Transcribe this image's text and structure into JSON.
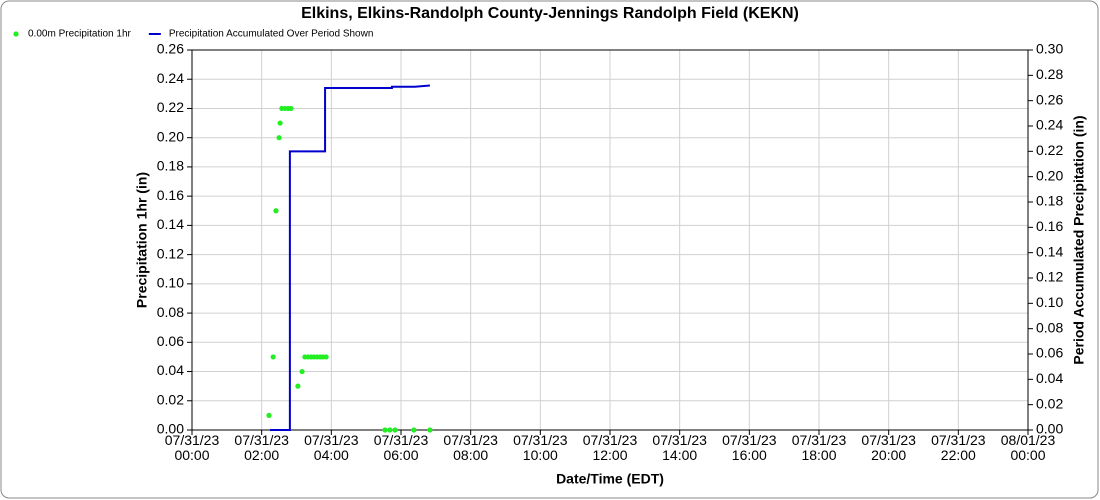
{
  "chart_data": {
    "type": "combo",
    "title": "Elkins, Elkins-Randolph County-Jennings Randolph Field (KEKN)",
    "x_label": "Date/Time (EDT)",
    "y_label": "Precipitation 1hr (in)",
    "y2_label": "Period Accumulated Precipitation (in)",
    "grid": true,
    "legend": "top-left",
    "xlim": [
      0,
      24
    ],
    "xticks": [
      {
        "value": 0,
        "label": "07/31/23\n00:00"
      },
      {
        "value": 2,
        "label": "07/31/23\n02:00"
      },
      {
        "value": 4,
        "label": "07/31/23\n04:00"
      },
      {
        "value": 6,
        "label": "07/31/23\n06:00"
      },
      {
        "value": 8,
        "label": "07/31/23\n08:00"
      },
      {
        "value": 10,
        "label": "07/31/23\n10:00"
      },
      {
        "value": 12,
        "label": "07/31/23\n12:00"
      },
      {
        "value": 14,
        "label": "07/31/23\n14:00"
      },
      {
        "value": 16,
        "label": "07/31/23\n16:00"
      },
      {
        "value": 18,
        "label": "07/31/23\n18:00"
      },
      {
        "value": 20,
        "label": "07/31/23\n20:00"
      },
      {
        "value": 22,
        "label": "07/31/23\n22:00"
      },
      {
        "value": 24,
        "label": "08/01/23\n00:00"
      }
    ],
    "ylim": [
      0,
      0.26
    ],
    "yticks": [
      {
        "value": 0,
        "label": "0.00"
      },
      {
        "value": 0.02,
        "label": "0.02"
      },
      {
        "value": 0.04,
        "label": "0.04"
      },
      {
        "value": 0.06,
        "label": "0.06"
      },
      {
        "value": 0.08,
        "label": "0.08"
      },
      {
        "value": 0.1,
        "label": "0.10"
      },
      {
        "value": 0.12,
        "label": "0.12"
      },
      {
        "value": 0.14,
        "label": "0.14"
      },
      {
        "value": 0.16,
        "label": "0.16"
      },
      {
        "value": 0.18,
        "label": "0.18"
      },
      {
        "value": 0.2,
        "label": "0.20"
      },
      {
        "value": 0.22,
        "label": "0.22"
      },
      {
        "value": 0.24,
        "label": "0.24"
      },
      {
        "value": 0.26,
        "label": "0.26"
      }
    ],
    "y2lim": [
      0,
      0.3
    ],
    "y2ticks": [
      {
        "value": 0,
        "label": "0.00"
      },
      {
        "value": 0.02,
        "label": "0.02"
      },
      {
        "value": 0.04,
        "label": "0.04"
      },
      {
        "value": 0.06,
        "label": "0.06"
      },
      {
        "value": 0.08,
        "label": "0.08"
      },
      {
        "value": 0.1,
        "label": "0.10"
      },
      {
        "value": 0.12,
        "label": "0.12"
      },
      {
        "value": 0.14,
        "label": "0.14"
      },
      {
        "value": 0.16,
        "label": "0.16"
      },
      {
        "value": 0.18,
        "label": "0.18"
      },
      {
        "value": 0.2,
        "label": "0.20"
      },
      {
        "value": 0.22,
        "label": "0.22"
      },
      {
        "value": 0.24,
        "label": "0.24"
      },
      {
        "value": 0.26,
        "label": "0.26"
      },
      {
        "value": 0.28,
        "label": "0.28"
      },
      {
        "value": 0.3,
        "label": "0.30"
      }
    ],
    "series": [
      {
        "name": "0.00m Precipitation 1hr",
        "type": "scatter",
        "color": "#22ee22",
        "x": [
          2.21,
          2.33,
          2.41,
          2.5,
          2.53,
          2.58,
          2.67,
          2.76,
          2.84,
          3.04,
          3.16,
          3.24,
          3.33,
          3.42,
          3.5,
          3.59,
          3.68,
          3.76,
          3.85,
          5.54,
          5.68,
          5.83,
          6.37,
          6.83
        ],
        "values": [
          0.01,
          0.05,
          0.15,
          0.2,
          0.21,
          0.22,
          0.22,
          0.22,
          0.22,
          0.03,
          0.04,
          0.05,
          0.05,
          0.05,
          0.05,
          0.05,
          0.05,
          0.05,
          0.05,
          0,
          0,
          0,
          0,
          0
        ]
      },
      {
        "name": "Precipitation Accumulated Over Period Shown",
        "type": "line",
        "axis": "y2",
        "color": "#0000cc",
        "x": [
          2.24,
          2.81,
          2.81,
          3.82,
          3.82,
          5.74,
          5.74,
          6.4,
          6.83
        ],
        "values": [
          0,
          0,
          0.22,
          0.22,
          0.27,
          0.27,
          0.271,
          0.271,
          0.272
        ]
      }
    ]
  }
}
